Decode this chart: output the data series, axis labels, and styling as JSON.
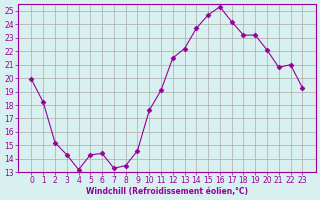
{
  "x": [
    0,
    1,
    2,
    3,
    4,
    5,
    6,
    7,
    8,
    9,
    10,
    11,
    12,
    13,
    14,
    15,
    16,
    17,
    18,
    19,
    20,
    21,
    22,
    23
  ],
  "y": [
    19.9,
    18.2,
    15.2,
    14.3,
    13.2,
    14.3,
    14.4,
    13.3,
    13.5,
    14.6,
    17.6,
    19.1,
    21.5,
    22.2,
    23.7,
    24.7,
    25.3,
    24.2,
    23.2,
    23.2,
    22.1,
    20.8,
    21.0,
    19.3
  ],
  "line_color": "#990099",
  "marker": "D",
  "marker_size": 2.5,
  "background_color": "#d8f0f0",
  "grid_color": "#aaaaaa",
  "xlabel": "Windchill (Refroidissement éolien,°C)",
  "xlabel_color": "#990099",
  "tick_color": "#990099",
  "ylim": [
    13,
    25.5
  ],
  "yticks": [
    13,
    14,
    15,
    16,
    17,
    18,
    19,
    20,
    21,
    22,
    23,
    24,
    25
  ],
  "xticks": [
    0,
    1,
    2,
    3,
    4,
    5,
    6,
    7,
    8,
    9,
    10,
    11,
    12,
    13,
    14,
    15,
    16,
    17,
    18,
    19,
    20,
    21,
    22,
    23
  ]
}
